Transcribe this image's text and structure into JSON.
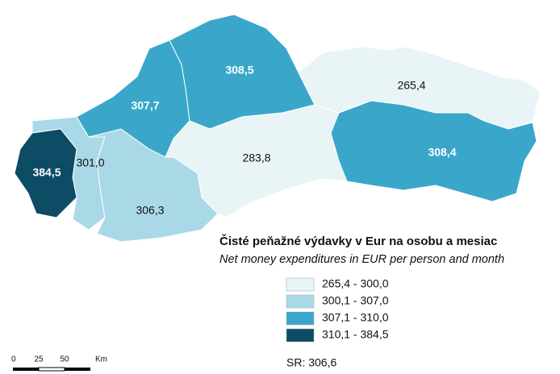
{
  "map": {
    "title": "Čisté peňažné výdavky v Eur na osobu a mesiac",
    "subtitle": "Net money expenditures in EUR per person and month",
    "regions": [
      {
        "label": "384,5"
      },
      {
        "label": "301,0"
      },
      {
        "label": "306,3"
      },
      {
        "label": "307,7"
      },
      {
        "label": "308,5"
      },
      {
        "label": "283,8"
      },
      {
        "label": "265,4"
      },
      {
        "label": "308,4"
      }
    ],
    "legend": [
      {
        "label": "265,4 - 300,0",
        "color": "#e8f4f6"
      },
      {
        "label": "300,1 - 307,0",
        "color": "#a9d9e7"
      },
      {
        "label": "307,1 - 310,0",
        "color": "#3aa7ca"
      },
      {
        "label": "310,1 - 384,5",
        "color": "#0c4c64"
      }
    ],
    "total": "SR: 306,6",
    "scale": {
      "labels": [
        "0",
        "25",
        "50"
      ],
      "unit": "Km"
    }
  }
}
